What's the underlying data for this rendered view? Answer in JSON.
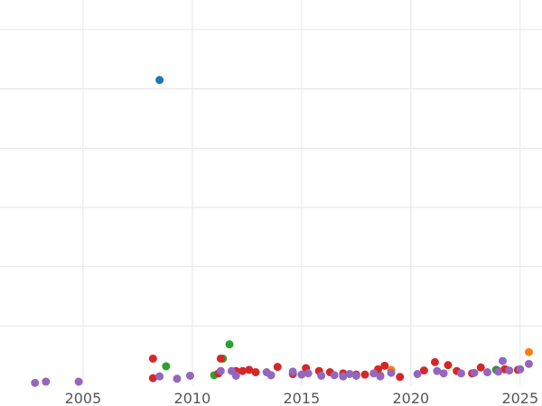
{
  "chart_data": {
    "type": "scatter",
    "title": "",
    "xlabel": "",
    "ylabel": "",
    "x_ticks": [
      2005,
      2010,
      2015,
      2020,
      2025
    ],
    "xlim": [
      2001.2,
      2026.0
    ],
    "ylim": [
      0,
      65
    ],
    "y_grid_values": [
      10,
      20,
      30,
      40,
      50,
      60
    ],
    "grid": true,
    "legend": "none",
    "series": [
      {
        "color": "#1f77b4",
        "points": [
          [
            2008.5,
            51.5
          ]
        ]
      },
      {
        "color": "#ff7f0e",
        "points": [
          [
            2019.1,
            2.6
          ],
          [
            2025.4,
            5.6
          ]
        ]
      },
      {
        "color": "#2ca02c",
        "points": [
          [
            2008.8,
            3.2
          ],
          [
            2011.0,
            1.7
          ],
          [
            2011.4,
            4.5
          ],
          [
            2011.7,
            6.9
          ],
          [
            2023.9,
            2.6
          ]
        ]
      },
      {
        "color": "#d62728",
        "points": [
          [
            2008.2,
            1.2
          ],
          [
            2008.2,
            4.5
          ],
          [
            2011.2,
            2.0
          ],
          [
            2011.3,
            4.5
          ],
          [
            2012.0,
            2.4
          ],
          [
            2012.3,
            2.4
          ],
          [
            2012.6,
            2.6
          ],
          [
            2012.9,
            2.2
          ],
          [
            2013.6,
            1.7
          ],
          [
            2013.9,
            3.1
          ],
          [
            2014.6,
            1.9
          ],
          [
            2015.2,
            2.9
          ],
          [
            2015.8,
            2.4
          ],
          [
            2016.3,
            2.2
          ],
          [
            2016.9,
            2.0
          ],
          [
            2017.5,
            1.8
          ],
          [
            2017.9,
            1.8
          ],
          [
            2018.5,
            2.7
          ],
          [
            2018.6,
            1.6
          ],
          [
            2018.8,
            3.3
          ],
          [
            2019.5,
            1.4
          ],
          [
            2020.6,
            2.5
          ],
          [
            2021.1,
            3.9
          ],
          [
            2021.7,
            3.4
          ],
          [
            2022.1,
            2.4
          ],
          [
            2022.8,
            2.0
          ],
          [
            2023.2,
            3.0
          ],
          [
            2024.0,
            2.4
          ],
          [
            2024.3,
            2.7
          ],
          [
            2024.9,
            2.6
          ]
        ]
      },
      {
        "color": "#9467bd",
        "points": [
          [
            2002.8,
            0.4
          ],
          [
            2003.3,
            0.6
          ],
          [
            2004.8,
            0.6
          ],
          [
            2008.5,
            1.5
          ],
          [
            2009.3,
            1.1
          ],
          [
            2009.9,
            1.6
          ],
          [
            2011.3,
            2.4
          ],
          [
            2011.8,
            2.4
          ],
          [
            2012.0,
            1.6
          ],
          [
            2013.4,
            2.2
          ],
          [
            2013.6,
            1.7
          ],
          [
            2014.6,
            2.3
          ],
          [
            2015.0,
            1.8
          ],
          [
            2015.3,
            2.0
          ],
          [
            2015.9,
            1.6
          ],
          [
            2016.5,
            1.7
          ],
          [
            2016.9,
            1.5
          ],
          [
            2017.2,
            1.9
          ],
          [
            2017.5,
            1.6
          ],
          [
            2018.3,
            2.0
          ],
          [
            2018.6,
            1.5
          ],
          [
            2019.1,
            2.1
          ],
          [
            2020.3,
            1.9
          ],
          [
            2021.2,
            2.4
          ],
          [
            2021.5,
            2.0
          ],
          [
            2022.3,
            2.0
          ],
          [
            2022.9,
            2.1
          ],
          [
            2023.5,
            2.2
          ],
          [
            2024.0,
            2.3
          ],
          [
            2024.2,
            4.1
          ],
          [
            2024.5,
            2.5
          ],
          [
            2025.0,
            2.7
          ],
          [
            2025.4,
            3.6
          ]
        ]
      }
    ]
  }
}
